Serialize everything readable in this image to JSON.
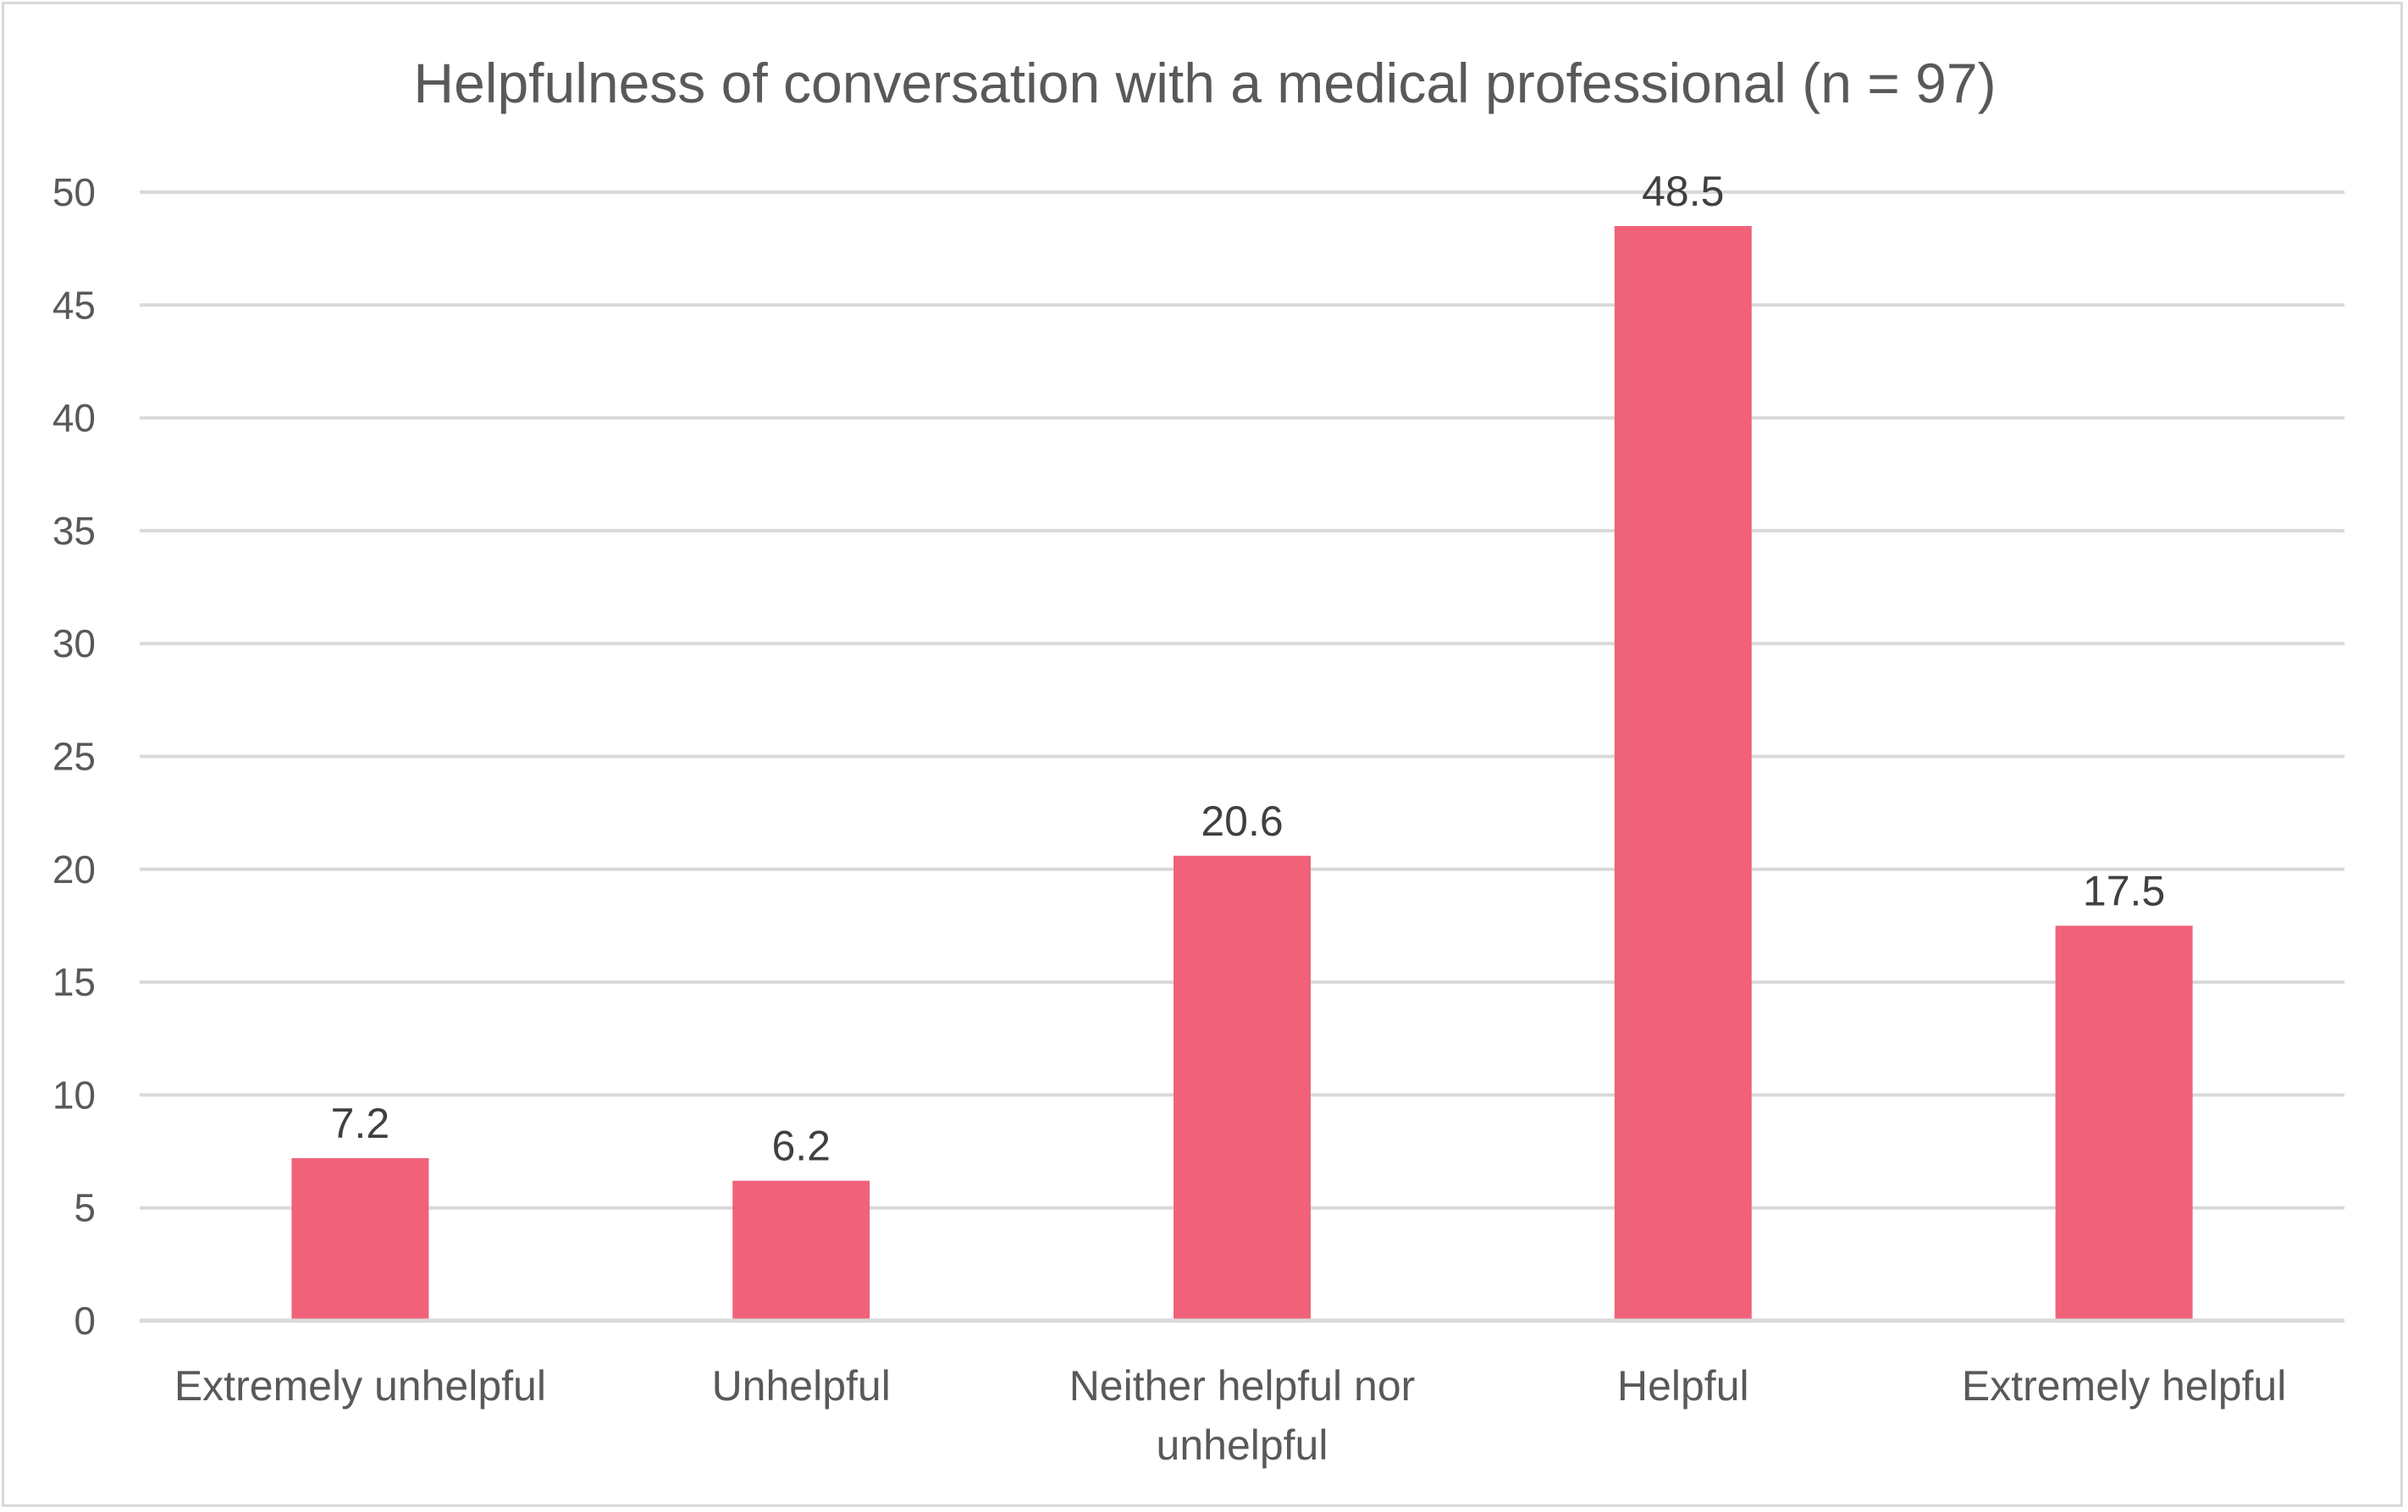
{
  "chart_data": {
    "type": "bar",
    "title": "Helpfulness of conversation with a medical professional (n = 97)",
    "xlabel": "",
    "ylabel": "",
    "categories": [
      [
        "Extremely unhelpful"
      ],
      [
        "Unhelpful"
      ],
      [
        "Neither helpful nor",
        "unhelpful"
      ],
      [
        "Helpful"
      ],
      [
        "Extremely helpful"
      ]
    ],
    "values": [
      7.2,
      6.2,
      20.6,
      48.5,
      17.5
    ],
    "data_labels": [
      "7.2",
      "6.2",
      "20.6",
      "48.5",
      "17.5"
    ],
    "ylim": [
      0,
      50
    ],
    "yticks": [
      0,
      5,
      10,
      15,
      20,
      25,
      30,
      35,
      40,
      45,
      50
    ],
    "grid": true,
    "legend": "none",
    "colors": {
      "bar": "#f0627a",
      "grid": "#d9d9d9",
      "text": "#595959"
    }
  }
}
